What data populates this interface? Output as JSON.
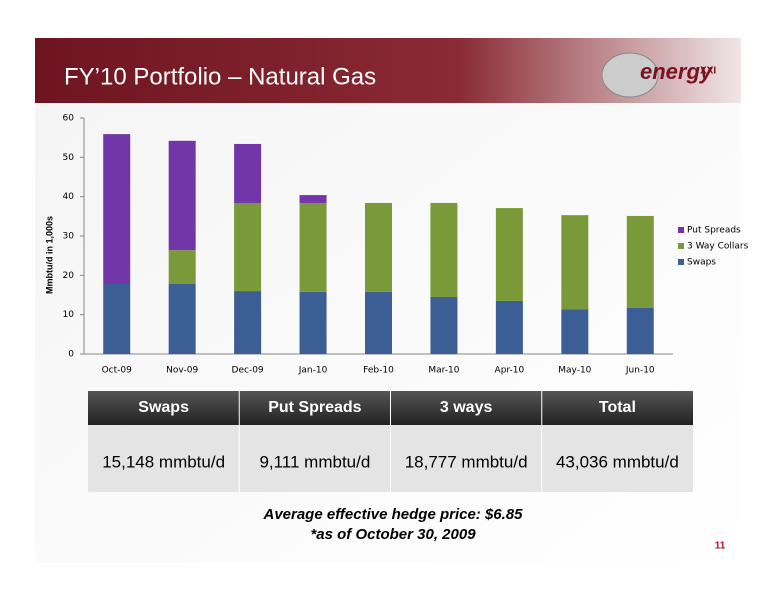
{
  "header": {
    "title": "FY’10 Portfolio – Natural Gas",
    "logo": "energy",
    "logo_suffix": "XXI"
  },
  "chart_data": {
    "type": "stacked_bar",
    "y_label": "Mmbtu/d in 1,000s",
    "categories": [
      "Oct-09",
      "Nov-09",
      "Dec-09",
      "Jan-10",
      "Feb-10",
      "Mar-10",
      "Apr-10",
      "May-10",
      "Jun-10"
    ],
    "series": [
      {
        "name": "Swaps",
        "color": "#3b5f95",
        "values": [
          17.8,
          17.8,
          16.0,
          15.8,
          15.8,
          14.5,
          13.5,
          11.4,
          11.7
        ]
      },
      {
        "name": "3 Way Collars",
        "color": "#7a9a3a",
        "values": [
          0,
          8.6,
          22.4,
          22.6,
          22.6,
          23.9,
          23.6,
          23.9,
          23.4
        ]
      },
      {
        "name": "Put Spreads",
        "color": "#7336a8",
        "values": [
          38.1,
          27.8,
          15.0,
          2.0,
          0,
          0,
          0,
          0,
          0
        ]
      }
    ],
    "ylim": [
      0,
      60
    ],
    "yticks": [
      0,
      10,
      20,
      30,
      40,
      50,
      60
    ],
    "grid": false,
    "legend": "right"
  },
  "table": {
    "header": [
      "Swaps",
      "Put Spreads",
      "3 ways",
      "Total"
    ],
    "rows": [
      [
        "15,148 mmbtu/d",
        "9,111 mmbtu/d",
        "18,777 mmbtu/d",
        "43,036 mmbtu/d"
      ]
    ]
  },
  "footer": {
    "line1": "Average effective hedge price:  $6.85",
    "line2": "*as of  October 30, 2009",
    "page": "11"
  }
}
